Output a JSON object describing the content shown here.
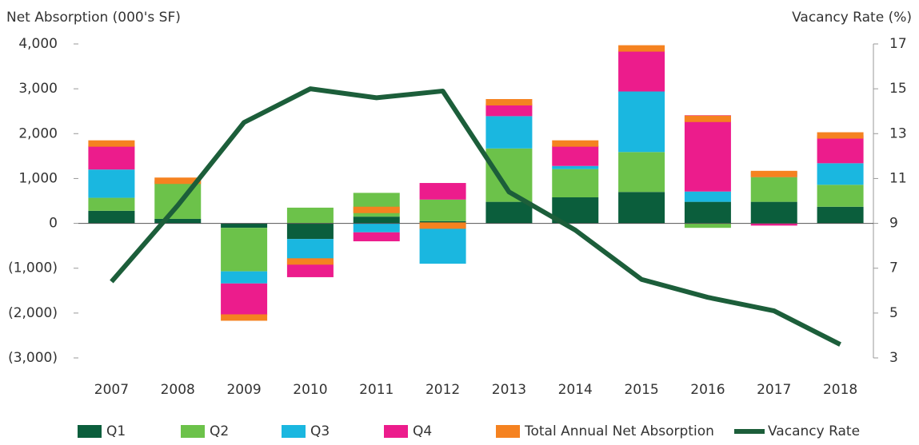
{
  "chart_data": {
    "type": "bar",
    "y_label": "Net Absorption (000's SF)",
    "y2_label": "Vacancy Rate (%)",
    "categories": [
      "2007",
      "2008",
      "2009",
      "2010",
      "2011",
      "2012",
      "2013",
      "2014",
      "2015",
      "2016",
      "2017",
      "2018"
    ],
    "series": [
      {
        "name": "Q1",
        "color": "#0b5e3c",
        "style": "stack",
        "values": [
          280,
          100,
          -100,
          -350,
          150,
          50,
          480,
          580,
          700,
          480,
          480,
          370
        ]
      },
      {
        "name": "Q2",
        "color": "#6cc24a",
        "style": "stack",
        "values": [
          290,
          800,
          -970,
          350,
          530,
          480,
          1190,
          630,
          890,
          -100,
          550,
          490
        ]
      },
      {
        "name": "Q3",
        "color": "#1ab7e0",
        "style": "stack",
        "values": [
          630,
          50,
          -270,
          -500,
          -200,
          -900,
          720,
          70,
          1350,
          230,
          120,
          480
        ]
      },
      {
        "name": "Q4",
        "color": "#ec1c8c",
        "style": "stack",
        "values": [
          530,
          0,
          -710,
          -350,
          -200,
          370,
          280,
          450,
          910,
          1700,
          -50,
          620
        ]
      },
      {
        "name": "Total Annual Net Absorption",
        "color": "#f58220",
        "style": "marker",
        "values": [
          1780,
          950,
          -2100,
          -850,
          300,
          -50,
          2700,
          1780,
          3900,
          2330,
          1100,
          1960
        ]
      },
      {
        "name": "Vacancy Rate",
        "color": "#1c5e3a",
        "style": "line",
        "axis": "y2",
        "values": [
          6.4,
          9.8,
          13.5,
          15.0,
          14.6,
          14.9,
          10.4,
          8.7,
          6.5,
          5.7,
          5.1,
          3.6
        ]
      }
    ],
    "ylim": [
      -3000,
      4000
    ],
    "yticks": [
      {
        "value": -3000,
        "label": "(3,000)"
      },
      {
        "value": -2000,
        "label": "(2,000)"
      },
      {
        "value": -1000,
        "label": "(1,000)"
      },
      0,
      {
        "value": 1000,
        "label": "1,000"
      },
      {
        "value": 2000,
        "label": "2,000"
      },
      {
        "value": 3000,
        "label": "3,000"
      },
      {
        "value": 4000,
        "label": "4,000"
      }
    ],
    "y2lim": [
      3,
      17
    ],
    "y2ticks": [
      3,
      5,
      7,
      9,
      11,
      13,
      15,
      17
    ],
    "legend": "bottom"
  }
}
